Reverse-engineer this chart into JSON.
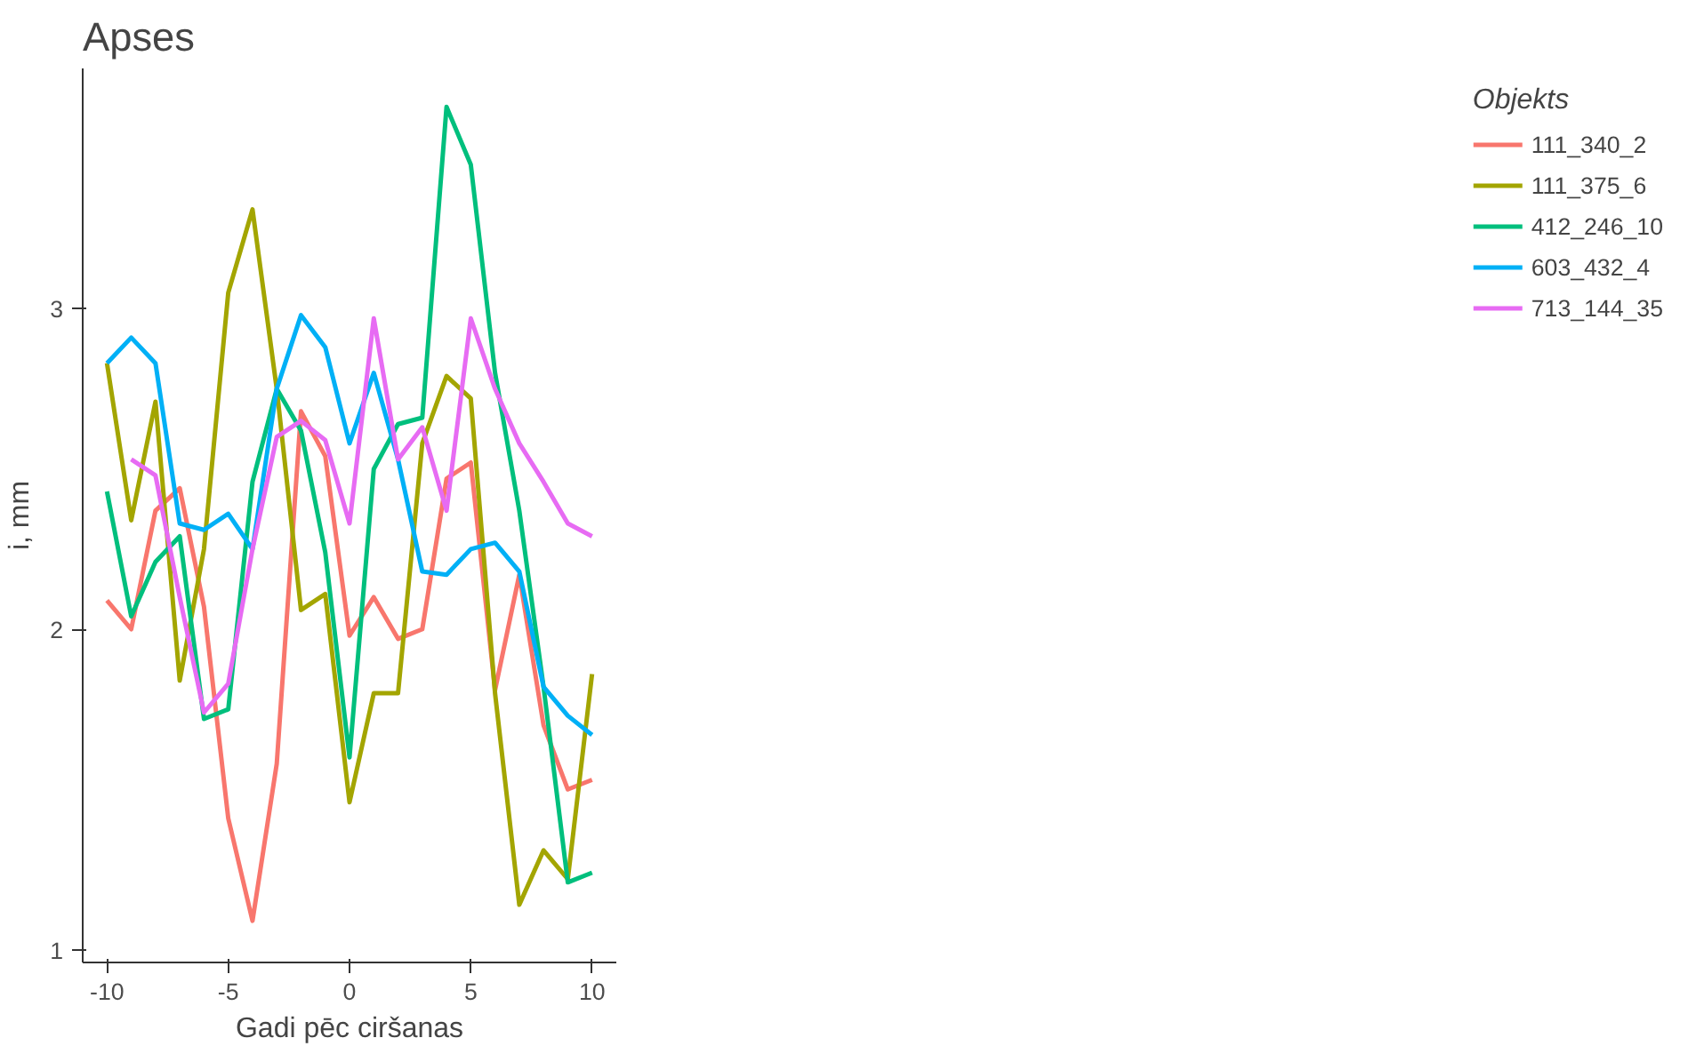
{
  "chart_data": {
    "type": "line",
    "title": "Apses",
    "xlabel": "Gadi pēc ciršanas",
    "ylabel": "i, mm",
    "legend_title": "Objekts",
    "legend": "right",
    "grid": false,
    "x": [
      -10,
      -9,
      -8,
      -7,
      -6,
      -5,
      -4,
      -3,
      -2,
      -1,
      0,
      1,
      2,
      3,
      4,
      5,
      6,
      7,
      8,
      9,
      10
    ],
    "xlim": [
      -11,
      11
    ],
    "xticks": [
      -10,
      -5,
      0,
      5,
      10
    ],
    "ylim": [
      0.96,
      3.75
    ],
    "yticks": [
      1,
      2,
      3
    ],
    "series": [
      {
        "name": "111_340_2",
        "color": "#f8766d",
        "values": [
          2.09,
          2.0,
          2.37,
          2.44,
          2.07,
          1.41,
          1.09,
          1.58,
          2.68,
          2.54,
          1.98,
          2.1,
          1.97,
          2.0,
          2.47,
          2.52,
          1.81,
          2.17,
          1.7,
          1.5,
          1.53
        ]
      },
      {
        "name": "111_375_6",
        "color": "#a3a500",
        "values": [
          2.83,
          2.34,
          2.71,
          1.84,
          2.25,
          3.05,
          3.31,
          2.75,
          2.06,
          2.11,
          1.46,
          1.8,
          1.8,
          2.58,
          2.79,
          2.72,
          1.8,
          1.14,
          1.31,
          1.22,
          1.86
        ]
      },
      {
        "name": "412_246_10",
        "color": "#00bf7d",
        "values": [
          2.43,
          2.04,
          2.21,
          2.29,
          1.72,
          1.75,
          2.46,
          2.75,
          2.62,
          2.24,
          1.6,
          2.5,
          2.64,
          2.66,
          3.63,
          3.45,
          2.8,
          2.37,
          1.82,
          1.21,
          1.24
        ]
      },
      {
        "name": "603_432_4",
        "color": "#00b0f6",
        "values": [
          2.83,
          2.91,
          2.83,
          2.33,
          2.31,
          2.36,
          2.25,
          2.75,
          2.98,
          2.88,
          2.58,
          2.8,
          2.53,
          2.18,
          2.17,
          2.25,
          2.27,
          2.18,
          1.82,
          1.73,
          1.67
        ]
      },
      {
        "name": "713_144_35",
        "color": "#e76bf3",
        "values": [
          null,
          2.53,
          2.48,
          2.1,
          1.74,
          1.83,
          2.25,
          2.6,
          2.65,
          2.59,
          2.33,
          2.97,
          2.53,
          2.63,
          2.37,
          2.97,
          2.75,
          2.58,
          2.46,
          2.33,
          2.29
        ]
      }
    ]
  }
}
